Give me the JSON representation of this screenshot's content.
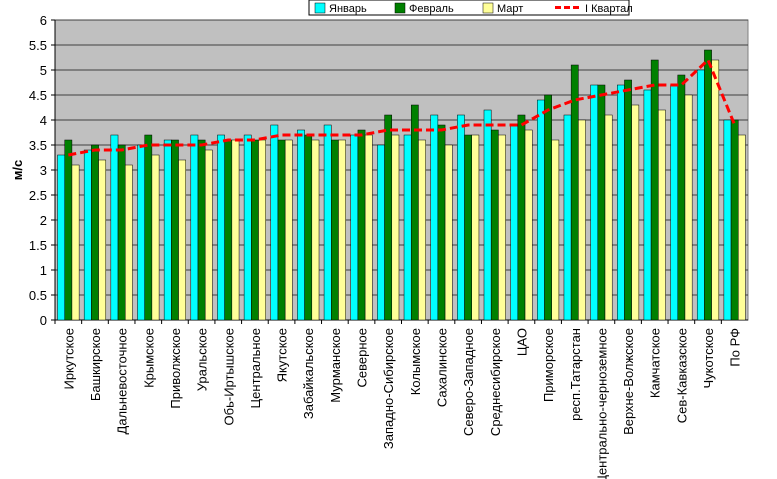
{
  "chart_data": {
    "type": "bar",
    "y_label": "м/с",
    "categories": [
      "Иркутское",
      "Башкирское",
      "Дальневосточное",
      "Крымское",
      "Приволжское",
      "Уральское",
      "Обь-Иртышское",
      "Центральное",
      "Якутское",
      "Забайкальское",
      "Мурманское",
      "Северное",
      "Западно-Сибирское",
      "Колымское",
      "Сахалинское",
      "Северо-Западное",
      "Среднесибирское",
      "ЦАО",
      "Приморское",
      "респ.Татарстан",
      "Центрально-черноземное",
      "Верхне-Волжское",
      "Камчатское",
      "Сев-Кавказское",
      "Чукотское",
      "По РФ"
    ],
    "series": [
      {
        "name": "Январь",
        "color": "#00ffff",
        "values": [
          3.3,
          3.4,
          3.7,
          3.5,
          3.6,
          3.7,
          3.7,
          3.7,
          3.9,
          3.8,
          3.9,
          3.7,
          3.5,
          3.7,
          4.1,
          4.1,
          4.2,
          3.9,
          4.4,
          4.1,
          4.7,
          4.7,
          4.6,
          4.7,
          5.0,
          4.0
        ]
      },
      {
        "name": "Февраль",
        "color": "#008000",
        "values": [
          3.6,
          3.5,
          3.5,
          3.7,
          3.6,
          3.6,
          3.6,
          3.6,
          3.6,
          3.7,
          3.6,
          3.8,
          4.1,
          4.3,
          3.9,
          3.7,
          3.8,
          4.1,
          4.5,
          5.1,
          4.7,
          4.8,
          5.2,
          4.9,
          5.4,
          4.0
        ]
      },
      {
        "name": "Март",
        "color": "#ffff99",
        "values": [
          3.1,
          3.2,
          3.1,
          3.3,
          3.2,
          3.4,
          3.6,
          3.6,
          3.6,
          3.6,
          3.6,
          3.7,
          3.7,
          3.6,
          3.5,
          3.7,
          3.7,
          3.8,
          3.6,
          4.0,
          4.1,
          4.3,
          4.2,
          4.5,
          5.2,
          3.7
        ]
      },
      {
        "name": "I Квартал",
        "color": "#ff0000",
        "line": true,
        "values": [
          3.3,
          3.4,
          3.4,
          3.5,
          3.5,
          3.5,
          3.6,
          3.6,
          3.7,
          3.7,
          3.7,
          3.7,
          3.8,
          3.8,
          3.8,
          3.9,
          3.9,
          3.9,
          4.2,
          4.4,
          4.5,
          4.6,
          4.7,
          4.7,
          5.2,
          3.9
        ]
      }
    ],
    "ylim": [
      0,
      6
    ],
    "yticks": [
      0,
      0.5,
      1,
      1.5,
      2,
      2.5,
      3,
      3.5,
      4,
      4.5,
      5,
      5.5,
      6
    ],
    "grid": true
  }
}
